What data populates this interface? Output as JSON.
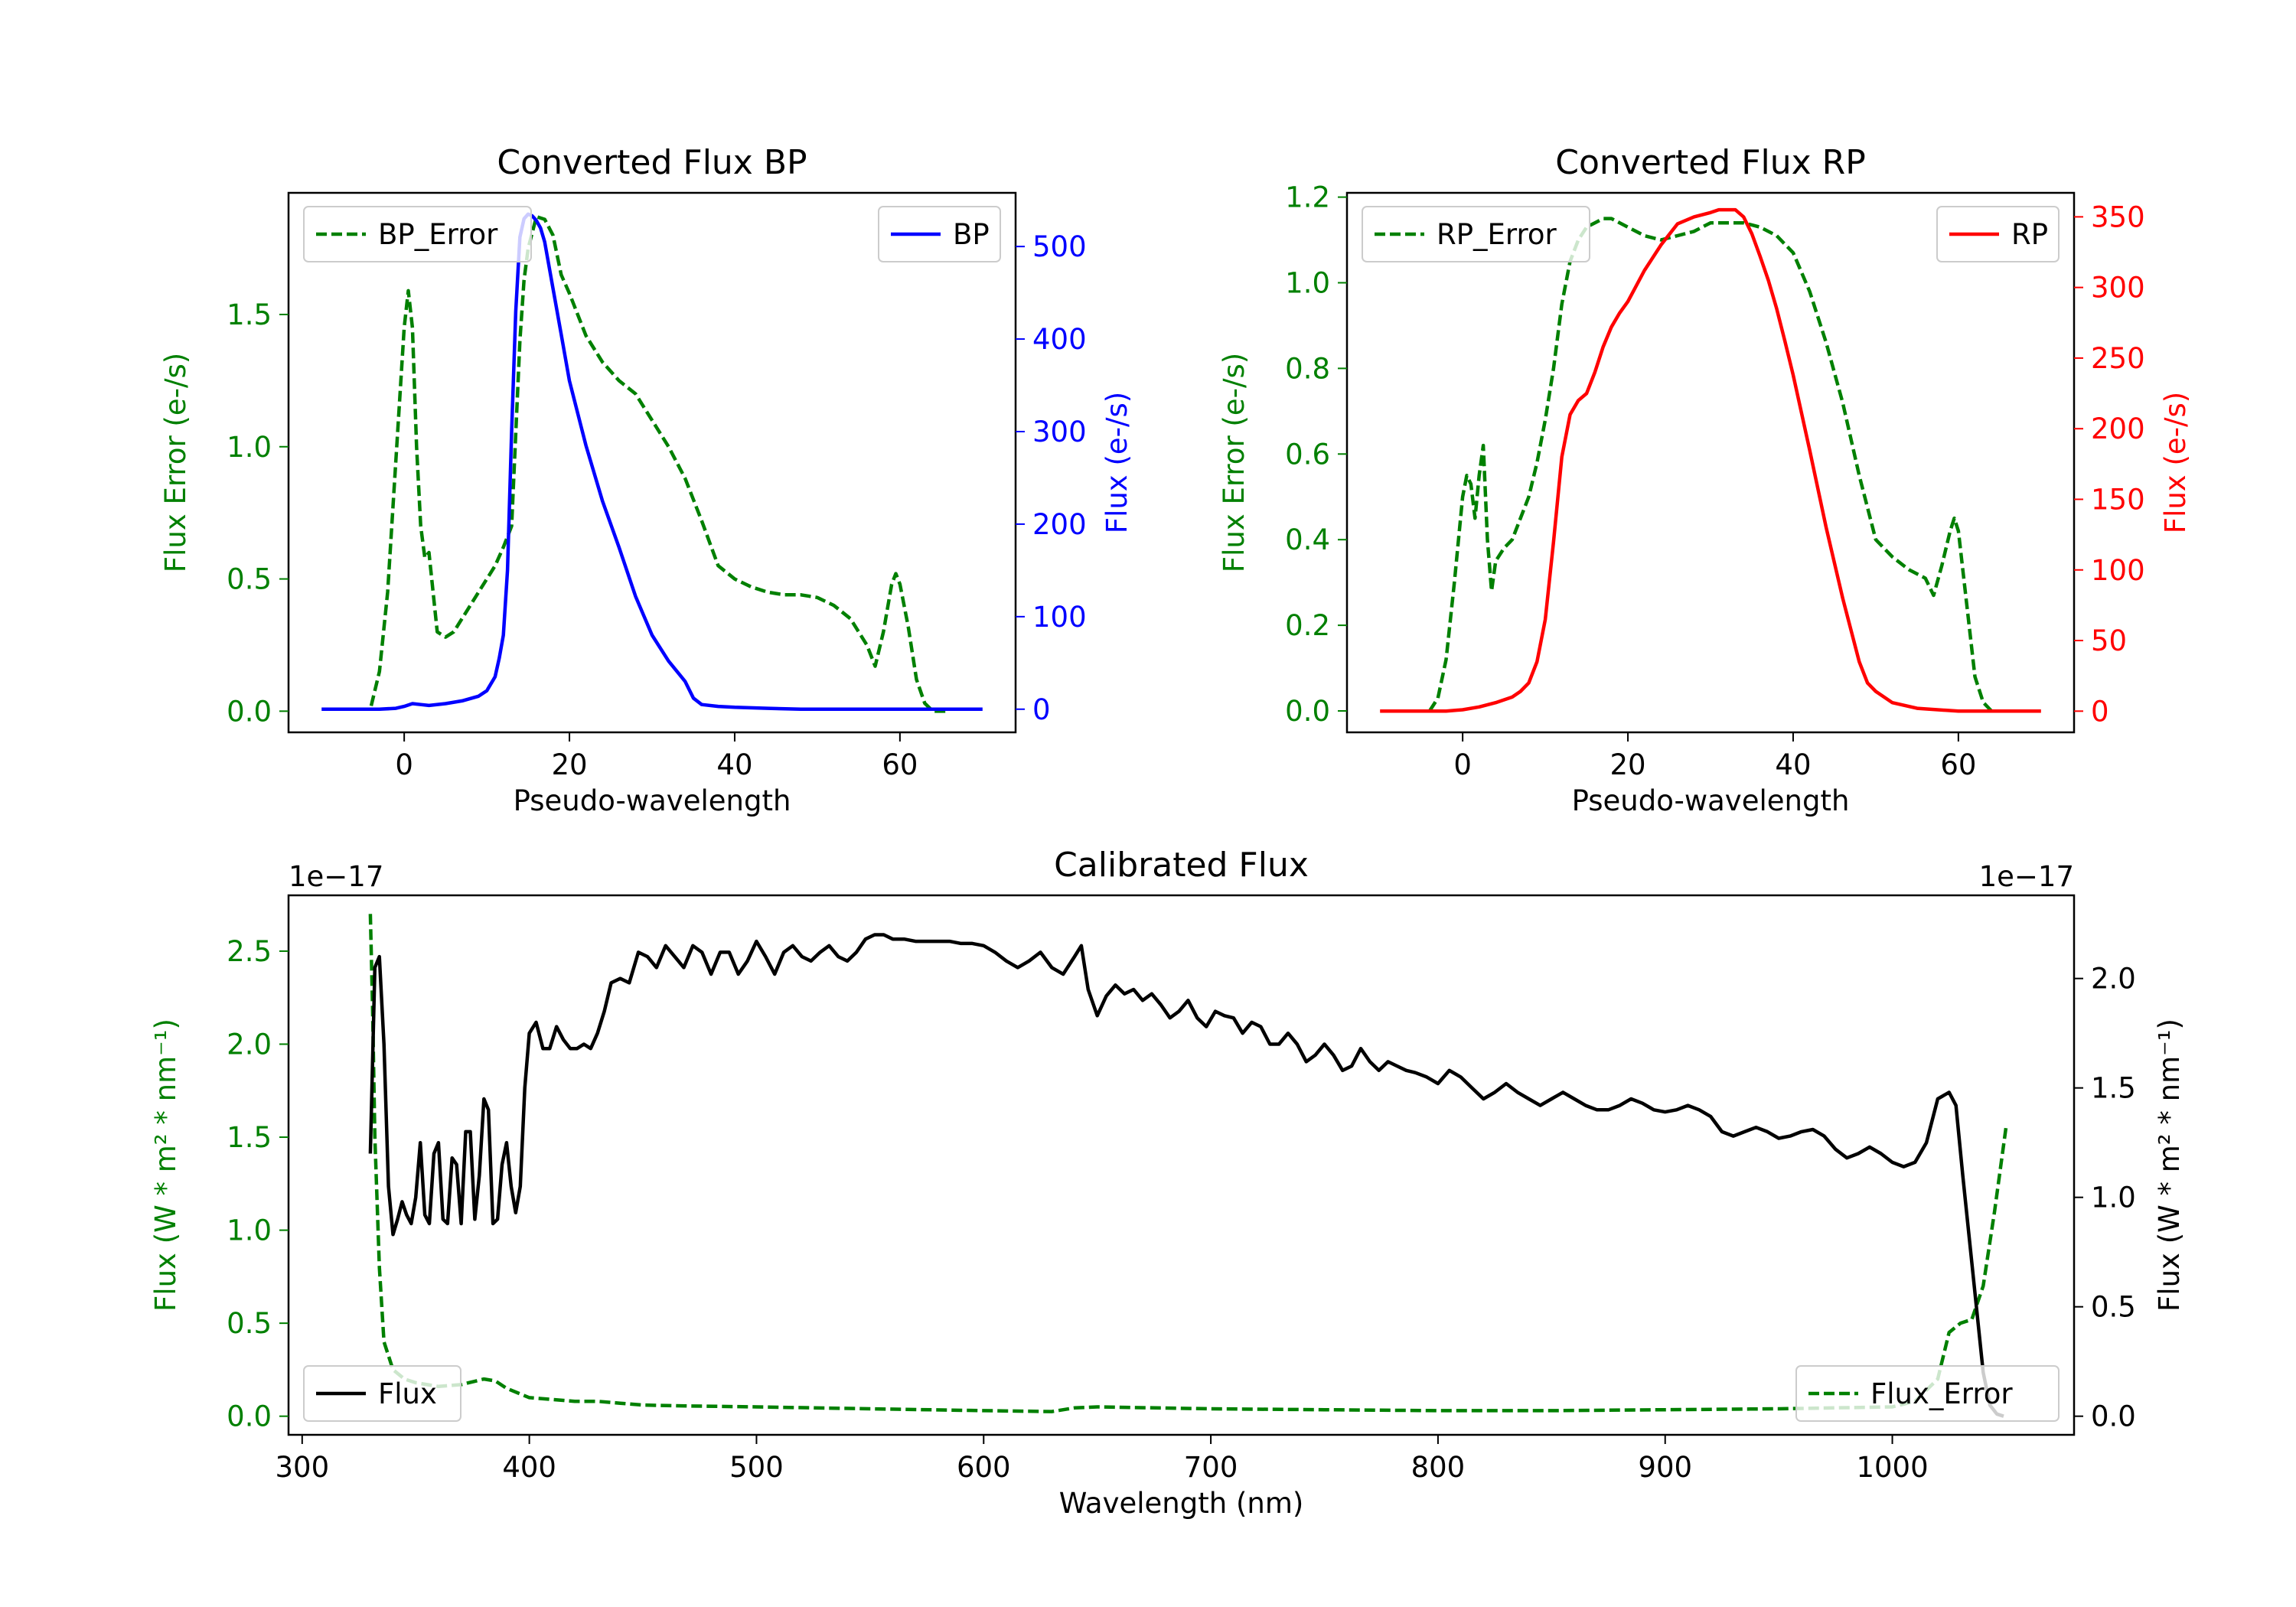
{
  "chart_data": [
    {
      "id": "bp",
      "type": "line",
      "title": "Converted Flux BP",
      "xlabel": "Pseudo-wavelength",
      "ylabel_left": "Flux Error (e-/s)",
      "ylabel_right": "Flux (e-/s)",
      "xlim": [
        -14,
        74
      ],
      "ylim_left": [
        -0.08,
        1.96
      ],
      "ylim_right": [
        -25,
        558
      ],
      "xticks": [
        0,
        20,
        40,
        60
      ],
      "xtick_labels": [
        "0",
        "20",
        "40",
        "60"
      ],
      "yticks_left": [
        0,
        0.5,
        1,
        1.5
      ],
      "ytick_labels_left": [
        "0.0",
        "0.5",
        "1.0",
        "1.5"
      ],
      "yticks_right": [
        0,
        100,
        200,
        300,
        400,
        500
      ],
      "ytick_labels_right": [
        "0",
        "100",
        "200",
        "300",
        "400",
        "500"
      ],
      "colors": {
        "left_axis": "#008000",
        "right_axis": "#0000ff"
      },
      "series": [
        {
          "name": "BP_Error",
          "legend_label": "BP_Error",
          "axis": "left",
          "color": "#008000",
          "style": "dashed",
          "legend_loc": "upper left",
          "x": [
            -4,
            -3,
            -2,
            -1,
            0,
            0.5,
            1,
            1.5,
            2,
            2.5,
            3,
            4,
            5,
            6,
            7,
            8,
            9,
            10,
            11,
            12,
            13,
            14,
            14.5,
            15,
            16,
            17,
            18,
            19,
            20,
            22,
            24,
            26,
            28,
            30,
            32,
            34,
            36,
            38,
            40,
            42,
            44,
            46,
            48,
            50,
            52,
            54,
            56,
            57,
            58,
            59,
            59.5,
            60,
            61,
            62,
            63,
            64,
            65,
            66
          ],
          "y": [
            0.02,
            0.15,
            0.45,
            0.95,
            1.45,
            1.59,
            1.45,
            1.0,
            0.7,
            0.58,
            0.6,
            0.3,
            0.28,
            0.3,
            0.35,
            0.4,
            0.45,
            0.5,
            0.55,
            0.62,
            0.7,
            1.4,
            1.63,
            1.75,
            1.87,
            1.86,
            1.8,
            1.65,
            1.58,
            1.42,
            1.32,
            1.25,
            1.2,
            1.1,
            1.0,
            0.88,
            0.72,
            0.55,
            0.5,
            0.47,
            0.45,
            0.44,
            0.44,
            0.43,
            0.4,
            0.35,
            0.25,
            0.17,
            0.3,
            0.48,
            0.52,
            0.48,
            0.32,
            0.12,
            0.03,
            0.0,
            0.0,
            0.0
          ]
        },
        {
          "name": "BP",
          "legend_label": "BP",
          "axis": "right",
          "color": "#0000ff",
          "style": "solid",
          "legend_loc": "upper right",
          "x": [
            -10,
            -6,
            -3,
            -1,
            0,
            1,
            2,
            3,
            5,
            7,
            9,
            10,
            11,
            11.5,
            12,
            12.5,
            13,
            13.5,
            14,
            14.5,
            15,
            15.5,
            16,
            16.5,
            17,
            18,
            19,
            20,
            22,
            24,
            26,
            28,
            30,
            32,
            34,
            35,
            36,
            38,
            40,
            44,
            48,
            52,
            56,
            60,
            65,
            70
          ],
          "y": [
            0,
            0,
            0,
            1,
            3,
            6,
            5,
            4,
            6,
            9,
            14,
            20,
            35,
            55,
            80,
            150,
            300,
            430,
            510,
            530,
            535,
            533,
            528,
            520,
            505,
            455,
            405,
            355,
            285,
            225,
            175,
            122,
            80,
            52,
            30,
            12,
            5,
            3,
            2,
            1,
            0,
            0,
            0,
            0,
            0,
            0
          ]
        }
      ]
    },
    {
      "id": "rp",
      "type": "line",
      "title": "Converted Flux RP",
      "xlabel": "Pseudo-wavelength",
      "ylabel_left": "Flux Error (e-/s)",
      "ylabel_right": "Flux (e-/s)",
      "xlim": [
        -14,
        74
      ],
      "ylim_left": [
        -0.05,
        1.21
      ],
      "ylim_right": [
        -15,
        367
      ],
      "xticks": [
        0,
        20,
        40,
        60
      ],
      "xtick_labels": [
        "0",
        "20",
        "40",
        "60"
      ],
      "yticks_left": [
        0,
        0.2,
        0.4,
        0.6,
        0.8,
        1.0,
        1.2
      ],
      "ytick_labels_left": [
        "0.0",
        "0.2",
        "0.4",
        "0.6",
        "0.8",
        "1.0",
        "1.2"
      ],
      "yticks_right": [
        0,
        50,
        100,
        150,
        200,
        250,
        300,
        350
      ],
      "ytick_labels_right": [
        "0",
        "50",
        "100",
        "150",
        "200",
        "250",
        "300",
        "350"
      ],
      "colors": {
        "left_axis": "#008000",
        "right_axis": "#ff0000"
      },
      "series": [
        {
          "name": "RP_Error",
          "legend_label": "RP_Error",
          "axis": "left",
          "color": "#008000",
          "style": "dashed",
          "legend_loc": "upper left",
          "x": [
            -4,
            -3,
            -2,
            -1,
            0,
            0.5,
            1,
            1.5,
            2,
            2.5,
            3,
            3.5,
            4,
            5,
            6,
            7,
            8,
            9,
            10,
            11,
            12,
            13,
            14,
            15,
            16,
            17,
            18,
            20,
            22,
            24,
            26,
            28,
            30,
            32,
            34,
            36,
            38,
            40,
            42,
            44,
            46,
            48,
            50,
            52,
            54,
            56,
            57,
            58,
            59,
            59.5,
            60,
            61,
            62,
            63,
            64
          ],
          "y": [
            0.0,
            0.03,
            0.12,
            0.3,
            0.5,
            0.55,
            0.53,
            0.45,
            0.55,
            0.62,
            0.4,
            0.28,
            0.35,
            0.38,
            0.4,
            0.45,
            0.5,
            0.58,
            0.68,
            0.8,
            0.95,
            1.05,
            1.1,
            1.13,
            1.14,
            1.15,
            1.15,
            1.13,
            1.11,
            1.1,
            1.11,
            1.12,
            1.14,
            1.14,
            1.14,
            1.13,
            1.11,
            1.07,
            0.98,
            0.86,
            0.72,
            0.55,
            0.4,
            0.36,
            0.33,
            0.31,
            0.27,
            0.34,
            0.42,
            0.45,
            0.42,
            0.25,
            0.08,
            0.02,
            0.0
          ]
        },
        {
          "name": "RP",
          "legend_label": "RP",
          "axis": "right",
          "color": "#ff0000",
          "style": "solid",
          "legend_loc": "upper right",
          "x": [
            -10,
            -5,
            -2,
            0,
            2,
            4,
            6,
            7,
            8,
            9,
            10,
            11,
            12,
            13,
            14,
            15,
            16,
            17,
            18,
            19,
            20,
            22,
            24,
            26,
            28,
            30,
            31,
            32,
            33,
            34,
            35,
            36,
            37,
            38,
            39,
            40,
            42,
            44,
            46,
            48,
            49,
            50,
            52,
            55,
            60,
            65,
            70
          ],
          "y": [
            0,
            0,
            0,
            1,
            3,
            6,
            10,
            14,
            20,
            35,
            65,
            120,
            180,
            210,
            220,
            225,
            240,
            258,
            272,
            282,
            290,
            312,
            330,
            345,
            350,
            353,
            355,
            355,
            355,
            350,
            338,
            322,
            305,
            285,
            262,
            238,
            185,
            130,
            80,
            35,
            20,
            14,
            6,
            2,
            0,
            0,
            0
          ]
        }
      ]
    },
    {
      "id": "calibrated",
      "type": "line",
      "title": "Calibrated Flux",
      "xlabel": "Wavelength (nm)",
      "ylabel_left": "Flux (W * m² * nm⁻¹)",
      "ylabel_right": "Flux (W * m² * nm⁻¹)",
      "scale_left": "1e−17",
      "scale_right": "1e−17",
      "xlim": [
        294,
        1080
      ],
      "ylim_left": [
        -0.1,
        2.8
      ],
      "ylim_right": [
        -0.085,
        2.38
      ],
      "xticks": [
        300,
        400,
        500,
        600,
        700,
        800,
        900,
        1000
      ],
      "xtick_labels": [
        "300",
        "400",
        "500",
        "600",
        "700",
        "800",
        "900",
        "1000"
      ],
      "yticks_left": [
        0,
        0.5,
        1.0,
        1.5,
        2.0,
        2.5
      ],
      "ytick_labels_left": [
        "0.0",
        "0.5",
        "1.0",
        "1.5",
        "2.0",
        "2.5"
      ],
      "yticks_right": [
        0,
        0.5,
        1.0,
        1.5,
        2.0
      ],
      "ytick_labels_right": [
        "0.0",
        "0.5",
        "1.0",
        "1.5",
        "2.0"
      ],
      "colors": {
        "left_axis": "#008000",
        "right_axis": "#000000"
      },
      "series": [
        {
          "name": "Flux_Error",
          "legend_label": "Flux_Error",
          "axis": "left",
          "color": "#008000",
          "style": "dashed",
          "legend_loc": "lower right",
          "x": [
            330,
            331,
            332,
            334,
            336,
            340,
            345,
            350,
            360,
            370,
            380,
            385,
            390,
            400,
            410,
            420,
            430,
            440,
            450,
            470,
            500,
            550,
            600,
            630,
            640,
            650,
            700,
            750,
            800,
            850,
            900,
            950,
            1000,
            1010,
            1020,
            1025,
            1030,
            1035,
            1040,
            1045,
            1050
          ],
          "y": [
            2.7,
            2.2,
            1.5,
            0.8,
            0.4,
            0.25,
            0.2,
            0.18,
            0.16,
            0.17,
            0.2,
            0.19,
            0.15,
            0.1,
            0.09,
            0.08,
            0.08,
            0.07,
            0.06,
            0.055,
            0.05,
            0.04,
            0.03,
            0.025,
            0.045,
            0.05,
            0.04,
            0.035,
            0.03,
            0.03,
            0.035,
            0.04,
            0.05,
            0.08,
            0.2,
            0.45,
            0.5,
            0.52,
            0.7,
            1.1,
            1.55
          ]
        },
        {
          "name": "Flux",
          "legend_label": "Flux",
          "axis": "right",
          "color": "#000000",
          "style": "solid",
          "legend_loc": "lower left",
          "x": [
            330,
            332,
            334,
            336,
            338,
            340,
            342,
            344,
            346,
            348,
            350,
            352,
            354,
            356,
            358,
            360,
            362,
            364,
            366,
            368,
            370,
            372,
            374,
            376,
            378,
            380,
            382,
            384,
            386,
            388,
            390,
            392,
            394,
            396,
            398,
            400,
            403,
            406,
            409,
            412,
            415,
            418,
            421,
            424,
            427,
            430,
            433,
            436,
            440,
            444,
            448,
            452,
            456,
            460,
            464,
            468,
            472,
            476,
            480,
            484,
            488,
            492,
            496,
            500,
            504,
            508,
            512,
            516,
            520,
            524,
            528,
            532,
            536,
            540,
            544,
            548,
            552,
            556,
            560,
            565,
            570,
            575,
            580,
            585,
            590,
            595,
            600,
            605,
            610,
            615,
            620,
            625,
            630,
            635,
            640,
            643,
            646,
            650,
            654,
            658,
            662,
            666,
            670,
            674,
            678,
            682,
            686,
            690,
            694,
            698,
            702,
            706,
            710,
            714,
            718,
            722,
            726,
            730,
            734,
            738,
            742,
            746,
            750,
            754,
            758,
            762,
            766,
            770,
            774,
            778,
            782,
            786,
            790,
            795,
            800,
            805,
            810,
            815,
            820,
            825,
            830,
            835,
            840,
            845,
            850,
            855,
            860,
            865,
            870,
            875,
            880,
            885,
            890,
            895,
            900,
            905,
            910,
            915,
            920,
            925,
            930,
            935,
            940,
            945,
            950,
            955,
            960,
            965,
            970,
            975,
            980,
            985,
            990,
            995,
            1000,
            1005,
            1010,
            1015,
            1020,
            1025,
            1028,
            1031,
            1034,
            1037,
            1040,
            1043,
            1046,
            1049
          ],
          "y": [
            1.2,
            2.05,
            2.1,
            1.7,
            1.05,
            0.83,
            0.9,
            0.98,
            0.92,
            0.88,
            1.0,
            1.25,
            0.92,
            0.88,
            1.2,
            1.25,
            0.9,
            0.88,
            1.18,
            1.15,
            0.88,
            1.3,
            1.3,
            0.9,
            1.1,
            1.45,
            1.4,
            0.88,
            0.9,
            1.15,
            1.25,
            1.05,
            0.93,
            1.05,
            1.5,
            1.75,
            1.8,
            1.68,
            1.68,
            1.78,
            1.72,
            1.68,
            1.68,
            1.7,
            1.68,
            1.75,
            1.85,
            1.98,
            2.0,
            1.98,
            2.12,
            2.1,
            2.05,
            2.15,
            2.1,
            2.05,
            2.15,
            2.12,
            2.02,
            2.12,
            2.12,
            2.02,
            2.08,
            2.17,
            2.1,
            2.02,
            2.12,
            2.15,
            2.1,
            2.08,
            2.12,
            2.15,
            2.1,
            2.08,
            2.12,
            2.18,
            2.2,
            2.2,
            2.18,
            2.18,
            2.17,
            2.17,
            2.17,
            2.17,
            2.16,
            2.16,
            2.15,
            2.12,
            2.08,
            2.05,
            2.08,
            2.12,
            2.05,
            2.02,
            2.1,
            2.15,
            1.95,
            1.83,
            1.92,
            1.97,
            1.93,
            1.95,
            1.9,
            1.93,
            1.88,
            1.82,
            1.85,
            1.9,
            1.82,
            1.78,
            1.85,
            1.83,
            1.82,
            1.75,
            1.8,
            1.78,
            1.7,
            1.7,
            1.75,
            1.7,
            1.62,
            1.65,
            1.7,
            1.65,
            1.58,
            1.6,
            1.68,
            1.62,
            1.58,
            1.62,
            1.6,
            1.58,
            1.57,
            1.55,
            1.52,
            1.58,
            1.55,
            1.5,
            1.45,
            1.48,
            1.52,
            1.48,
            1.45,
            1.42,
            1.45,
            1.48,
            1.45,
            1.42,
            1.4,
            1.4,
            1.42,
            1.45,
            1.43,
            1.4,
            1.39,
            1.4,
            1.42,
            1.4,
            1.37,
            1.3,
            1.28,
            1.3,
            1.32,
            1.3,
            1.27,
            1.28,
            1.3,
            1.31,
            1.28,
            1.22,
            1.18,
            1.2,
            1.23,
            1.2,
            1.16,
            1.14,
            1.16,
            1.25,
            1.45,
            1.48,
            1.42,
            1.1,
            0.8,
            0.5,
            0.2,
            0.05,
            0.01,
            0.0
          ]
        }
      ]
    }
  ]
}
